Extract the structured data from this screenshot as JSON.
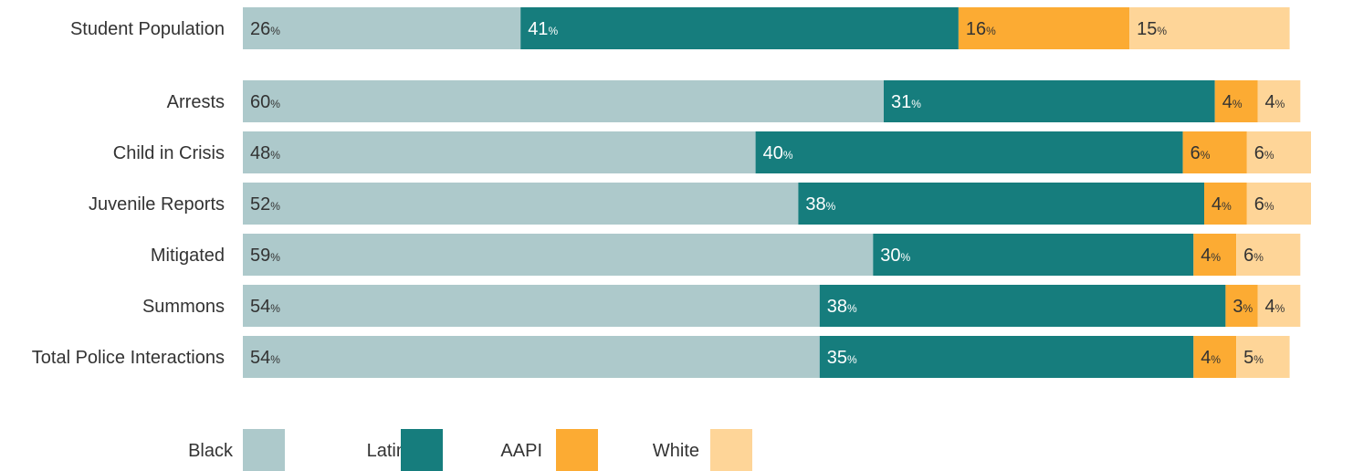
{
  "chart_data": {
    "type": "bar",
    "orientation": "horizontal",
    "stacked": true,
    "categories": [
      "Student Population",
      "Arrests",
      "Child in Crisis",
      "Juvenile Reports",
      "Mitigated",
      "Summons",
      "Total Police Interactions"
    ],
    "series": [
      {
        "name": "Black",
        "color": "#adc9cb",
        "text_color": "#333333",
        "values": [
          26,
          60,
          48,
          52,
          59,
          54,
          54
        ]
      },
      {
        "name": "Latinx",
        "color": "#167d7d",
        "text_color": "#ffffff",
        "values": [
          41,
          31,
          40,
          38,
          30,
          38,
          35
        ]
      },
      {
        "name": "AAPI",
        "color": "#fcab33",
        "text_color": "#333333",
        "values": [
          16,
          4,
          6,
          4,
          4,
          3,
          4
        ]
      },
      {
        "name": "White",
        "color": "#fed598",
        "text_color": "#333333",
        "values": [
          15,
          4,
          6,
          6,
          6,
          4,
          5
        ]
      }
    ],
    "unit": "%",
    "xlim": [
      0,
      100
    ],
    "grid": false,
    "legend_position": "bottom"
  }
}
